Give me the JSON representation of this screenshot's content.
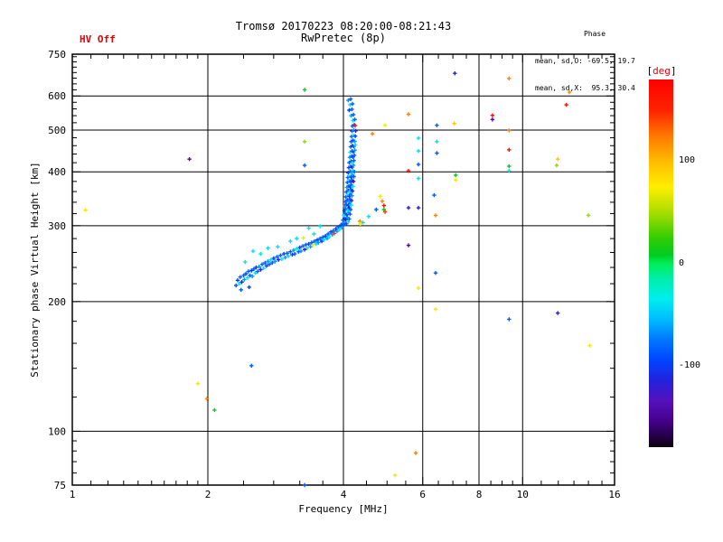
{
  "header": {
    "title": "Tromsø 20170223 08:20:00-08:21:43",
    "subtitle": "RwPretec (8p)",
    "hv_status": "HV Off",
    "hv_color": "#e60000",
    "phase_stats": {
      "title": "Phase",
      "o_line": "mean, sd,O: -69.5, 19.7",
      "x_line": "mean, sd,X:  95.3, 30.4"
    }
  },
  "colorbar": {
    "bracket_open": "[",
    "unit": "deg",
    "bracket_close": "]",
    "unit_color": "#e60000",
    "min_deg": -180,
    "max_deg": 180,
    "ticks": [
      {
        "value": 100,
        "label": "100"
      },
      {
        "value": 0,
        "label": "0"
      },
      {
        "value": -100,
        "label": "-100"
      }
    ],
    "stops": [
      [
        180,
        "#ff0000"
      ],
      [
        150,
        "#ff2200"
      ],
      [
        125,
        "#ff7700"
      ],
      [
        100,
        "#ffbb00"
      ],
      [
        75,
        "#ffee00"
      ],
      [
        50,
        "#aadd00"
      ],
      [
        25,
        "#33cc00"
      ],
      [
        8,
        "#00cc22"
      ],
      [
        0,
        "#00ee55"
      ],
      [
        -15,
        "#00eeaa"
      ],
      [
        -35,
        "#00eeee"
      ],
      [
        -55,
        "#00bbff"
      ],
      [
        -75,
        "#0077ff"
      ],
      [
        -95,
        "#0044ff"
      ],
      [
        -115,
        "#2222dd"
      ],
      [
        -135,
        "#5511bb"
      ],
      [
        -155,
        "#440088"
      ],
      [
        -170,
        "#220044"
      ],
      [
        -180,
        "#0d000d"
      ]
    ]
  },
  "chart_data": {
    "type": "scatter",
    "title": "Tromsø 20170223 08:20:00-08:21:43 RwPretec (8p)",
    "marker": "plus",
    "units": {
      "x": "MHz",
      "y": "km",
      "color": "deg"
    },
    "axes": {
      "x": {
        "label": "Frequency [MHz]",
        "scale": "log",
        "min": 1,
        "max": 16,
        "major_ticks": [
          1,
          2,
          4,
          6,
          8,
          10,
          16
        ],
        "minor_ticks": [
          1.1,
          1.2,
          1.3,
          1.4,
          1.5,
          1.6,
          1.7,
          1.8,
          1.9,
          2.4,
          2.8,
          3.2,
          3.6,
          4.5,
          5,
          5.5,
          6.5,
          7,
          7.5,
          8.5,
          9,
          9.5,
          11,
          12,
          13,
          14,
          15
        ],
        "gridlines": [
          2,
          4,
          6,
          8,
          10
        ]
      },
      "y": {
        "label": "Stationary phase Virtual Height [km]",
        "scale": "log",
        "min": 75,
        "max": 750,
        "major_ticks": [
          75,
          100,
          200,
          300,
          400,
          500,
          600,
          750
        ],
        "minor_ticks": [
          80,
          85,
          90,
          95,
          120,
          140,
          160,
          180,
          220,
          240,
          260,
          280,
          320,
          340,
          360,
          380,
          420,
          440,
          460,
          480,
          520,
          540,
          560,
          580,
          620,
          640,
          660,
          680,
          700,
          720,
          740
        ],
        "gridlines": [
          100,
          200,
          300,
          400,
          500,
          600
        ]
      }
    },
    "points": [
      [
        2.31,
        218,
        -85
      ],
      [
        2.33,
        224,
        -95
      ],
      [
        2.35,
        220,
        -40
      ],
      [
        2.36,
        228,
        -85
      ],
      [
        2.38,
        222,
        -115
      ],
      [
        2.4,
        230,
        -85
      ],
      [
        2.41,
        225,
        -65
      ],
      [
        2.43,
        232,
        -95
      ],
      [
        2.45,
        227,
        -40
      ],
      [
        2.46,
        235,
        -85
      ],
      [
        2.48,
        230,
        -85
      ],
      [
        2.5,
        236,
        -95
      ],
      [
        2.51,
        229,
        -65
      ],
      [
        2.53,
        238,
        -85
      ],
      [
        2.55,
        233,
        -40
      ],
      [
        2.56,
        240,
        -95
      ],
      [
        2.58,
        235,
        -85
      ],
      [
        2.6,
        241,
        -65
      ],
      [
        2.62,
        237,
        -115
      ],
      [
        2.64,
        244,
        -85
      ],
      [
        2.66,
        239,
        -40
      ],
      [
        2.68,
        246,
        -85
      ],
      [
        2.7,
        242,
        -95
      ],
      [
        2.72,
        248,
        -65
      ],
      [
        2.74,
        244,
        -85
      ],
      [
        2.76,
        250,
        -40
      ],
      [
        2.78,
        246,
        -85
      ],
      [
        2.8,
        252,
        -95
      ],
      [
        2.82,
        248,
        -65
      ],
      [
        2.85,
        254,
        -85
      ],
      [
        2.87,
        250,
        -115
      ],
      [
        2.9,
        256,
        -85
      ],
      [
        2.92,
        251,
        -40
      ],
      [
        2.95,
        258,
        -95
      ],
      [
        2.97,
        253,
        -65
      ],
      [
        3.0,
        259,
        -85
      ],
      [
        3.02,
        255,
        -40
      ],
      [
        3.05,
        261,
        -85
      ],
      [
        3.08,
        257,
        -95
      ],
      [
        3.1,
        263,
        -65
      ],
      [
        3.12,
        258,
        -85
      ],
      [
        3.15,
        265,
        -40
      ],
      [
        3.18,
        261,
        -85
      ],
      [
        3.2,
        267,
        -95
      ],
      [
        3.22,
        262,
        -65
      ],
      [
        3.25,
        269,
        -85
      ],
      [
        3.28,
        264,
        -115
      ],
      [
        3.3,
        271,
        -85
      ],
      [
        3.32,
        266,
        -40
      ],
      [
        3.35,
        272,
        -95
      ],
      [
        3.38,
        268,
        -65
      ],
      [
        3.4,
        274,
        -85
      ],
      [
        3.42,
        270,
        70
      ],
      [
        3.45,
        276,
        -85
      ],
      [
        3.48,
        272,
        -40
      ],
      [
        3.5,
        278,
        -95
      ],
      [
        3.52,
        274,
        -65
      ],
      [
        3.55,
        280,
        -85
      ],
      [
        3.58,
        276,
        -115
      ],
      [
        3.6,
        282,
        -85
      ],
      [
        3.62,
        278,
        -40
      ],
      [
        3.65,
        284,
        -95
      ],
      [
        3.68,
        280,
        -65
      ],
      [
        3.7,
        287,
        -85
      ],
      [
        3.72,
        283,
        -40
      ],
      [
        3.75,
        290,
        -95
      ],
      [
        3.78,
        286,
        -65
      ],
      [
        3.8,
        292,
        -85
      ],
      [
        3.82,
        288,
        140
      ],
      [
        3.85,
        295,
        -95
      ],
      [
        3.87,
        291,
        -65
      ],
      [
        3.9,
        298,
        -85
      ],
      [
        3.92,
        294,
        -40
      ],
      [
        3.95,
        301,
        -95
      ],
      [
        3.97,
        297,
        -65
      ],
      [
        3.99,
        304,
        -85
      ],
      [
        2.37,
        213,
        -85
      ],
      [
        2.47,
        216,
        -95
      ],
      [
        2.42,
        247,
        -25
      ],
      [
        2.52,
        262,
        -40
      ],
      [
        2.62,
        258,
        -25
      ],
      [
        2.72,
        266,
        -40
      ],
      [
        2.86,
        268,
        -40
      ],
      [
        3.05,
        276,
        -40
      ],
      [
        3.15,
        280,
        -40
      ],
      [
        3.26,
        281,
        70
      ],
      [
        3.35,
        296,
        -40
      ],
      [
        3.44,
        287,
        -25
      ],
      [
        3.55,
        299,
        -40
      ],
      [
        4.0,
        302,
        -85
      ],
      [
        4.03,
        305,
        -65
      ],
      [
        4.06,
        303,
        -95
      ],
      [
        4.1,
        306,
        -40
      ],
      [
        3.99,
        309,
        -85
      ],
      [
        4.02,
        312,
        -95
      ],
      [
        4.05,
        310,
        -115
      ],
      [
        4.08,
        314,
        -65
      ],
      [
        4.12,
        311,
        -85
      ],
      [
        4.01,
        317,
        -40
      ],
      [
        4.04,
        320,
        -85
      ],
      [
        4.07,
        318,
        -95
      ],
      [
        4.11,
        322,
        -65
      ],
      [
        4.14,
        319,
        -85
      ],
      [
        4.02,
        325,
        -95
      ],
      [
        4.05,
        328,
        -85
      ],
      [
        4.09,
        326,
        -40
      ],
      [
        4.12,
        330,
        -115
      ],
      [
        4.15,
        327,
        -85
      ],
      [
        4.03,
        333,
        -65
      ],
      [
        4.06,
        336,
        -85
      ],
      [
        4.1,
        334,
        -95
      ],
      [
        4.13,
        338,
        -85
      ],
      [
        4.16,
        335,
        -40
      ],
      [
        4.04,
        341,
        -85
      ],
      [
        4.08,
        344,
        -95
      ],
      [
        4.11,
        342,
        -65
      ],
      [
        4.14,
        346,
        -85
      ],
      [
        4.17,
        343,
        -115
      ],
      [
        4.05,
        350,
        -85
      ],
      [
        4.09,
        353,
        -40
      ],
      [
        4.12,
        351,
        -95
      ],
      [
        4.15,
        355,
        -85
      ],
      [
        4.18,
        352,
        -65
      ],
      [
        4.06,
        359,
        -85
      ],
      [
        4.1,
        362,
        -95
      ],
      [
        4.13,
        360,
        -40
      ],
      [
        4.16,
        364,
        -85
      ],
      [
        4.19,
        361,
        -115
      ],
      [
        4.07,
        368,
        -65
      ],
      [
        4.11,
        371,
        -85
      ],
      [
        4.14,
        369,
        -95
      ],
      [
        4.17,
        373,
        -85
      ],
      [
        4.2,
        370,
        -40
      ],
      [
        4.08,
        378,
        -85
      ],
      [
        4.12,
        381,
        -65
      ],
      [
        4.15,
        379,
        -95
      ],
      [
        4.18,
        383,
        -85
      ],
      [
        4.21,
        380,
        -145
      ],
      [
        4.09,
        388,
        -85
      ],
      [
        4.13,
        391,
        -40
      ],
      [
        4.16,
        389,
        -95
      ],
      [
        4.19,
        393,
        -65
      ],
      [
        4.22,
        390,
        -85
      ],
      [
        4.1,
        398,
        -95
      ],
      [
        4.14,
        401,
        -85
      ],
      [
        4.17,
        399,
        -65
      ],
      [
        4.2,
        403,
        -40
      ],
      [
        4.23,
        400,
        -85
      ],
      [
        4.11,
        409,
        -95
      ],
      [
        4.15,
        412,
        -85
      ],
      [
        4.18,
        410,
        -115
      ],
      [
        4.21,
        414,
        -65
      ],
      [
        4.12,
        420,
        -85
      ],
      [
        4.16,
        423,
        -95
      ],
      [
        4.19,
        421,
        -40
      ],
      [
        4.22,
        425,
        -85
      ],
      [
        4.13,
        432,
        -65
      ],
      [
        4.17,
        435,
        -85
      ],
      [
        4.2,
        433,
        -95
      ],
      [
        4.23,
        437,
        -85
      ],
      [
        4.14,
        444,
        -40
      ],
      [
        4.18,
        447,
        -85
      ],
      [
        4.21,
        445,
        -95
      ],
      [
        4.24,
        449,
        -65
      ],
      [
        4.15,
        457,
        -85
      ],
      [
        4.19,
        460,
        -115
      ],
      [
        4.22,
        458,
        -85
      ],
      [
        4.25,
        462,
        -40
      ],
      [
        4.16,
        470,
        -85
      ],
      [
        4.2,
        473,
        -95
      ],
      [
        4.24,
        471,
        -65
      ],
      [
        4.17,
        483,
        -85
      ],
      [
        4.21,
        486,
        -40
      ],
      [
        4.25,
        484,
        -95
      ],
      [
        4.18,
        497,
        -85
      ],
      [
        4.22,
        500,
        -65
      ],
      [
        4.26,
        498,
        -115
      ],
      [
        4.19,
        511,
        -85
      ],
      [
        4.23,
        514,
        -95
      ],
      [
        4.2,
        526,
        -40
      ],
      [
        4.24,
        529,
        -85
      ],
      [
        4.16,
        540,
        -65
      ],
      [
        4.21,
        543,
        -85
      ],
      [
        4.12,
        556,
        -95
      ],
      [
        4.18,
        559,
        -85
      ],
      [
        4.14,
        572,
        -40
      ],
      [
        4.19,
        575,
        -85
      ],
      [
        4.1,
        586,
        -65
      ],
      [
        4.15,
        590,
        -85
      ],
      [
        4.25,
        512,
        150
      ],
      [
        4.64,
        490,
        120
      ],
      [
        4.35,
        307,
        120
      ],
      [
        4.42,
        305,
        -40
      ],
      [
        4.36,
        303,
        70
      ],
      [
        4.83,
        351,
        70
      ],
      [
        4.88,
        342,
        120
      ],
      [
        4.92,
        334,
        165
      ],
      [
        4.92,
        327,
        10
      ],
      [
        4.95,
        323,
        140
      ],
      [
        4.73,
        327,
        -85
      ],
      [
        4.55,
        315,
        -40
      ],
      [
        3.28,
        620,
        10
      ],
      [
        7.07,
        677,
        -115
      ],
      [
        9.33,
        659,
        120
      ],
      [
        12.7,
        612,
        120
      ],
      [
        12.5,
        572,
        165
      ],
      [
        5.58,
        544,
        120
      ],
      [
        4.95,
        513,
        70
      ],
      [
        6.45,
        513,
        -85
      ],
      [
        7.05,
        518,
        95
      ],
      [
        8.57,
        541,
        165
      ],
      [
        8.57,
        529,
        -145
      ],
      [
        9.33,
        499,
        120
      ],
      [
        9.33,
        450,
        165
      ],
      [
        5.87,
        479,
        -40
      ],
      [
        6.45,
        470,
        -40
      ],
      [
        5.87,
        447,
        -40
      ],
      [
        6.45,
        442,
        -85
      ],
      [
        5.87,
        416,
        -85
      ],
      [
        5.58,
        402,
        165
      ],
      [
        11.97,
        428,
        95
      ],
      [
        11.9,
        414,
        45
      ],
      [
        9.33,
        412,
        10
      ],
      [
        9.33,
        402,
        -40
      ],
      [
        5.87,
        386,
        -40
      ],
      [
        7.1,
        393,
        10
      ],
      [
        7.1,
        383,
        70
      ],
      [
        6.36,
        353,
        -85
      ],
      [
        5.58,
        330,
        -115
      ],
      [
        5.87,
        330,
        -115
      ],
      [
        6.41,
        317,
        120
      ],
      [
        14.0,
        317,
        45
      ],
      [
        5.58,
        270,
        -145
      ],
      [
        6.41,
        233,
        -85
      ],
      [
        5.87,
        215,
        70
      ],
      [
        6.41,
        192,
        70
      ],
      [
        9.33,
        182,
        -85
      ],
      [
        11.97,
        188,
        -115
      ],
      [
        14.1,
        158,
        70
      ],
      [
        1.82,
        428,
        -145
      ],
      [
        1.07,
        326,
        70
      ],
      [
        3.28,
        470,
        45
      ],
      [
        3.28,
        414,
        -85
      ],
      [
        2.5,
        142,
        -85
      ],
      [
        1.9,
        129,
        70
      ],
      [
        1.99,
        119,
        120
      ],
      [
        2.07,
        112,
        10
      ],
      [
        5.79,
        89,
        120
      ],
      [
        5.21,
        79,
        70
      ],
      [
        3.28,
        75,
        -85
      ]
    ]
  }
}
